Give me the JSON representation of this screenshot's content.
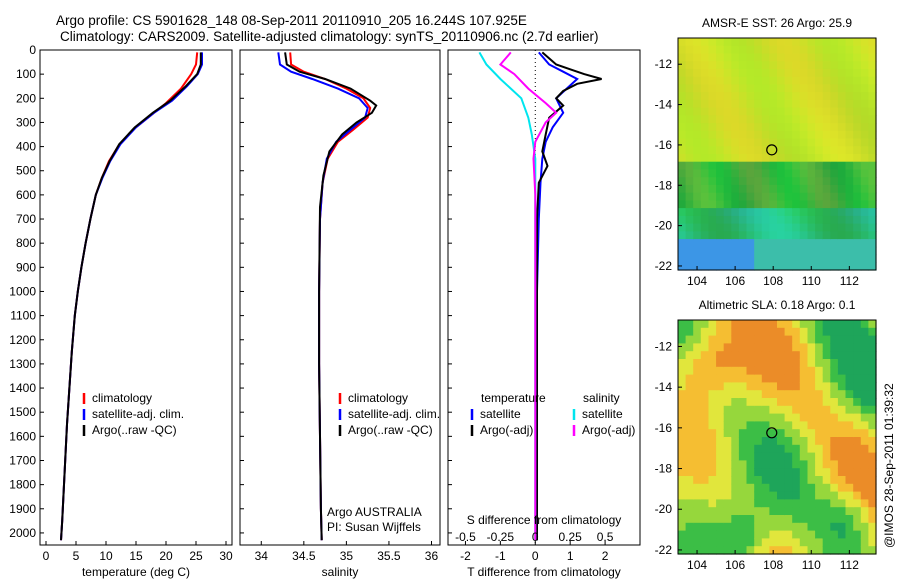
{
  "header": {
    "title_line1": "Argo profile: CS 5901628_148 08-Sep-2011 20110910_205 16.244S 107.925E",
    "title_line2": "Climatology: CARS2009. Satellite-adjusted climatology: synTS_20110906.nc (2.7d earlier)"
  },
  "watermark": "@IMOS 28-Sep-2011 01:39:32",
  "colors": {
    "climatology": "#ff0000",
    "satellite": "#0000ff",
    "argo": "#000000",
    "argo_salinity": "#ff00ff",
    "satellite_salinity": "#00e5ee"
  },
  "chart_data": [
    {
      "type": "line",
      "name": "temperature-profile",
      "xlabel": "temperature (deg C)",
      "ylabel": "",
      "xlim": [
        -1,
        31
      ],
      "ylim": [
        2050,
        0
      ],
      "xticks": [
        "0",
        "5",
        "10",
        "15",
        "20",
        "25",
        "30"
      ],
      "yticks": [
        "0",
        "100",
        "200",
        "300",
        "400",
        "500",
        "600",
        "700",
        "800",
        "900",
        "1000",
        "1100",
        "1200",
        "1300",
        "1400",
        "1500",
        "1600",
        "1700",
        "1800",
        "1900",
        "2000"
      ],
      "legend": [
        "climatology",
        "satellite-adj. clim.",
        "Argo(..raw -QC)"
      ],
      "series": [
        {
          "name": "climatology",
          "color": "#ff0000",
          "points": [
            [
              25.2,
              10
            ],
            [
              25.0,
              60
            ],
            [
              24.2,
              100
            ],
            [
              22.5,
              160
            ],
            [
              20.0,
              220
            ],
            [
              17.0,
              280
            ],
            [
              14.5,
              330
            ],
            [
              12.0,
              400
            ],
            [
              10.5,
              460
            ],
            [
              9.3,
              530
            ],
            [
              8.3,
              600
            ],
            [
              7.4,
              700
            ],
            [
              6.6,
              800
            ],
            [
              5.9,
              900
            ],
            [
              5.3,
              1000
            ],
            [
              4.8,
              1100
            ],
            [
              4.3,
              1250
            ],
            [
              3.9,
              1400
            ],
            [
              3.5,
              1550
            ],
            [
              3.2,
              1700
            ],
            [
              2.9,
              1850
            ],
            [
              2.7,
              1950
            ],
            [
              2.5,
              2030
            ]
          ]
        },
        {
          "name": "satellite-adj. clim.",
          "color": "#0000ff",
          "points": [
            [
              26.0,
              10
            ],
            [
              26.0,
              60
            ],
            [
              25.3,
              100
            ],
            [
              23.5,
              150
            ],
            [
              21.0,
              210
            ],
            [
              18.0,
              260
            ],
            [
              15.0,
              320
            ],
            [
              12.4,
              390
            ],
            [
              10.7,
              460
            ],
            [
              9.4,
              530
            ],
            [
              8.3,
              600
            ],
            [
              7.4,
              700
            ],
            [
              6.6,
              800
            ],
            [
              5.9,
              900
            ],
            [
              5.3,
              1000
            ],
            [
              4.8,
              1100
            ],
            [
              4.3,
              1250
            ],
            [
              3.9,
              1400
            ],
            [
              3.5,
              1550
            ],
            [
              3.2,
              1700
            ],
            [
              2.9,
              1850
            ],
            [
              2.7,
              1950
            ],
            [
              2.5,
              2030
            ]
          ]
        },
        {
          "name": "Argo(..raw -QC)",
          "color": "#000000",
          "points": [
            [
              25.8,
              10
            ],
            [
              25.8,
              60
            ],
            [
              25.2,
              100
            ],
            [
              23.3,
              150
            ],
            [
              20.7,
              210
            ],
            [
              17.8,
              260
            ],
            [
              14.8,
              320
            ],
            [
              12.2,
              390
            ],
            [
              10.6,
              460
            ],
            [
              9.3,
              530
            ],
            [
              8.3,
              600
            ],
            [
              7.4,
              700
            ],
            [
              6.6,
              800
            ],
            [
              5.9,
              900
            ],
            [
              5.3,
              1000
            ],
            [
              4.8,
              1100
            ],
            [
              4.3,
              1250
            ],
            [
              3.9,
              1400
            ],
            [
              3.5,
              1550
            ],
            [
              3.2,
              1700
            ],
            [
              2.9,
              1850
            ],
            [
              2.7,
              1950
            ],
            [
              2.5,
              2030
            ]
          ]
        }
      ]
    },
    {
      "type": "line",
      "name": "salinity-profile",
      "xlabel": "salinity",
      "xlim": [
        33.75,
        36.1
      ],
      "ylim": [
        2050,
        0
      ],
      "xticks": [
        "34",
        "34.5",
        "35",
        "35.5",
        "36"
      ],
      "legend": [
        "climatology",
        "satellite-adj. clim.",
        "Argo(..raw -QC)"
      ],
      "annotation": [
        "Argo AUSTRALIA",
        "PI: Susan Wijffels"
      ],
      "series": [
        {
          "name": "climatology",
          "color": "#ff0000",
          "points": [
            [
              34.34,
              10
            ],
            [
              34.35,
              60
            ],
            [
              34.5,
              90
            ],
            [
              34.75,
              120
            ],
            [
              35.0,
              160
            ],
            [
              35.2,
              200
            ],
            [
              35.28,
              240
            ],
            [
              35.25,
              280
            ],
            [
              35.08,
              330
            ],
            [
              34.9,
              380
            ],
            [
              34.78,
              450
            ],
            [
              34.72,
              550
            ],
            [
              34.69,
              700
            ],
            [
              34.68,
              1000
            ],
            [
              34.68,
              1300
            ],
            [
              34.69,
              1600
            ],
            [
              34.7,
              1900
            ],
            [
              34.71,
              2030
            ]
          ]
        },
        {
          "name": "satellite-adj. clim.",
          "color": "#0000ff",
          "points": [
            [
              34.2,
              10
            ],
            [
              34.22,
              60
            ],
            [
              34.35,
              90
            ],
            [
              34.6,
              120
            ],
            [
              34.9,
              160
            ],
            [
              35.15,
              200
            ],
            [
              35.25,
              240
            ],
            [
              35.22,
              280
            ],
            [
              35.05,
              330
            ],
            [
              34.88,
              380
            ],
            [
              34.77,
              450
            ],
            [
              34.72,
              550
            ],
            [
              34.69,
              700
            ],
            [
              34.68,
              1000
            ],
            [
              34.68,
              1300
            ],
            [
              34.69,
              1600
            ],
            [
              34.7,
              1900
            ],
            [
              34.71,
              2030
            ]
          ]
        },
        {
          "name": "Argo(..raw -QC)",
          "color": "#000000",
          "points": [
            [
              34.28,
              10
            ],
            [
              34.3,
              60
            ],
            [
              34.45,
              90
            ],
            [
              34.75,
              120
            ],
            [
              35.05,
              160
            ],
            [
              35.28,
              210
            ],
            [
              35.35,
              230
            ],
            [
              35.3,
              260
            ],
            [
              35.12,
              300
            ],
            [
              34.95,
              350
            ],
            [
              34.8,
              420
            ],
            [
              34.73,
              520
            ],
            [
              34.69,
              650
            ],
            [
              34.68,
              1000
            ],
            [
              34.68,
              1300
            ],
            [
              34.69,
              1600
            ],
            [
              34.7,
              1900
            ],
            [
              34.71,
              2030
            ]
          ]
        }
      ]
    },
    {
      "type": "line",
      "name": "difference-profile",
      "xlabel": "T difference from climatology",
      "x2label": "S difference from climatology",
      "xlim": [
        -2.5,
        3.0
      ],
      "ylim": [
        2050,
        0
      ],
      "xticks": [
        "-2",
        "-1",
        "0",
        "1",
        "2"
      ],
      "x2ticks": [
        "-0.5",
        "-0.25",
        "0",
        "0.25",
        "0.5"
      ],
      "legend_headers": [
        "temperature",
        "salinity"
      ],
      "legend": [
        "satellite",
        "Argo(-adj)",
        "satellite",
        "Argo(-adj)"
      ],
      "series": [
        {
          "name": "T satellite",
          "color": "#0000ff",
          "points": [
            [
              0.1,
              10
            ],
            [
              0.4,
              60
            ],
            [
              0.8,
              90
            ],
            [
              1.2,
              120
            ],
            [
              0.9,
              160
            ],
            [
              0.6,
              200
            ],
            [
              0.8,
              260
            ],
            [
              0.5,
              320
            ],
            [
              0.3,
              380
            ],
            [
              0.2,
              450
            ],
            [
              0.15,
              550
            ],
            [
              0.1,
              700
            ],
            [
              0.05,
              1000
            ],
            [
              0.05,
              1500
            ],
            [
              0.05,
              2030
            ]
          ]
        },
        {
          "name": "T Argo(-adj)",
          "color": "#000000",
          "points": [
            [
              0.2,
              10
            ],
            [
              0.6,
              60
            ],
            [
              1.0,
              80
            ],
            [
              1.4,
              100
            ],
            [
              1.9,
              120
            ],
            [
              1.2,
              140
            ],
            [
              0.8,
              170
            ],
            [
              0.6,
              200
            ],
            [
              0.8,
              230
            ],
            [
              0.4,
              280
            ],
            [
              0.3,
              350
            ],
            [
              0.2,
              420
            ],
            [
              0.35,
              480
            ],
            [
              0.1,
              550
            ],
            [
              0.05,
              700
            ],
            [
              0.05,
              1000
            ],
            [
              0.05,
              1500
            ],
            [
              0.05,
              2030
            ]
          ]
        },
        {
          "name": "S satellite",
          "color": "#00e5ee",
          "points": [
            [
              -1.6,
              10
            ],
            [
              -1.4,
              60
            ],
            [
              -1.0,
              120
            ],
            [
              -0.4,
              200
            ],
            [
              -0.2,
              280
            ],
            [
              -0.1,
              350
            ],
            [
              0.0,
              450
            ],
            [
              0.0,
              600
            ],
            [
              0.0,
              1000
            ],
            [
              0.0,
              2030
            ]
          ]
        },
        {
          "name": "S Argo(-adj)",
          "color": "#ff00ff",
          "points": [
            [
              -0.7,
              10
            ],
            [
              -1.0,
              60
            ],
            [
              -0.6,
              100
            ],
            [
              -0.2,
              160
            ],
            [
              0.3,
              220
            ],
            [
              0.6,
              260
            ],
            [
              0.3,
              300
            ],
            [
              0.0,
              380
            ],
            [
              -0.05,
              450
            ],
            [
              0.0,
              600
            ],
            [
              0.0,
              1000
            ],
            [
              0.0,
              2030
            ]
          ]
        }
      ]
    },
    {
      "type": "heatmap",
      "name": "sst-map",
      "title": "AMSR-E SST: 26  Argo: 25.9",
      "xlim": [
        103,
        113.4
      ],
      "ylim": [
        -22.2,
        -10.7
      ],
      "xticks": [
        "104",
        "106",
        "108",
        "110",
        "112"
      ],
      "yticks": [
        "-12",
        "-14",
        "-16",
        "-18",
        "-20",
        "-22"
      ],
      "marker": {
        "lon": 107.925,
        "lat": -16.244
      }
    },
    {
      "type": "heatmap",
      "name": "sla-map",
      "title": "Altimetric SLA: 0.18  Argo: 0.1",
      "xlim": [
        103,
        113.4
      ],
      "ylim": [
        -22.2,
        -10.7
      ],
      "xticks": [
        "104",
        "106",
        "108",
        "110",
        "112"
      ],
      "yticks": [
        "-12",
        "-14",
        "-16",
        "-18",
        "-20",
        "-22"
      ],
      "marker": {
        "lon": 107.925,
        "lat": -16.244
      }
    }
  ]
}
